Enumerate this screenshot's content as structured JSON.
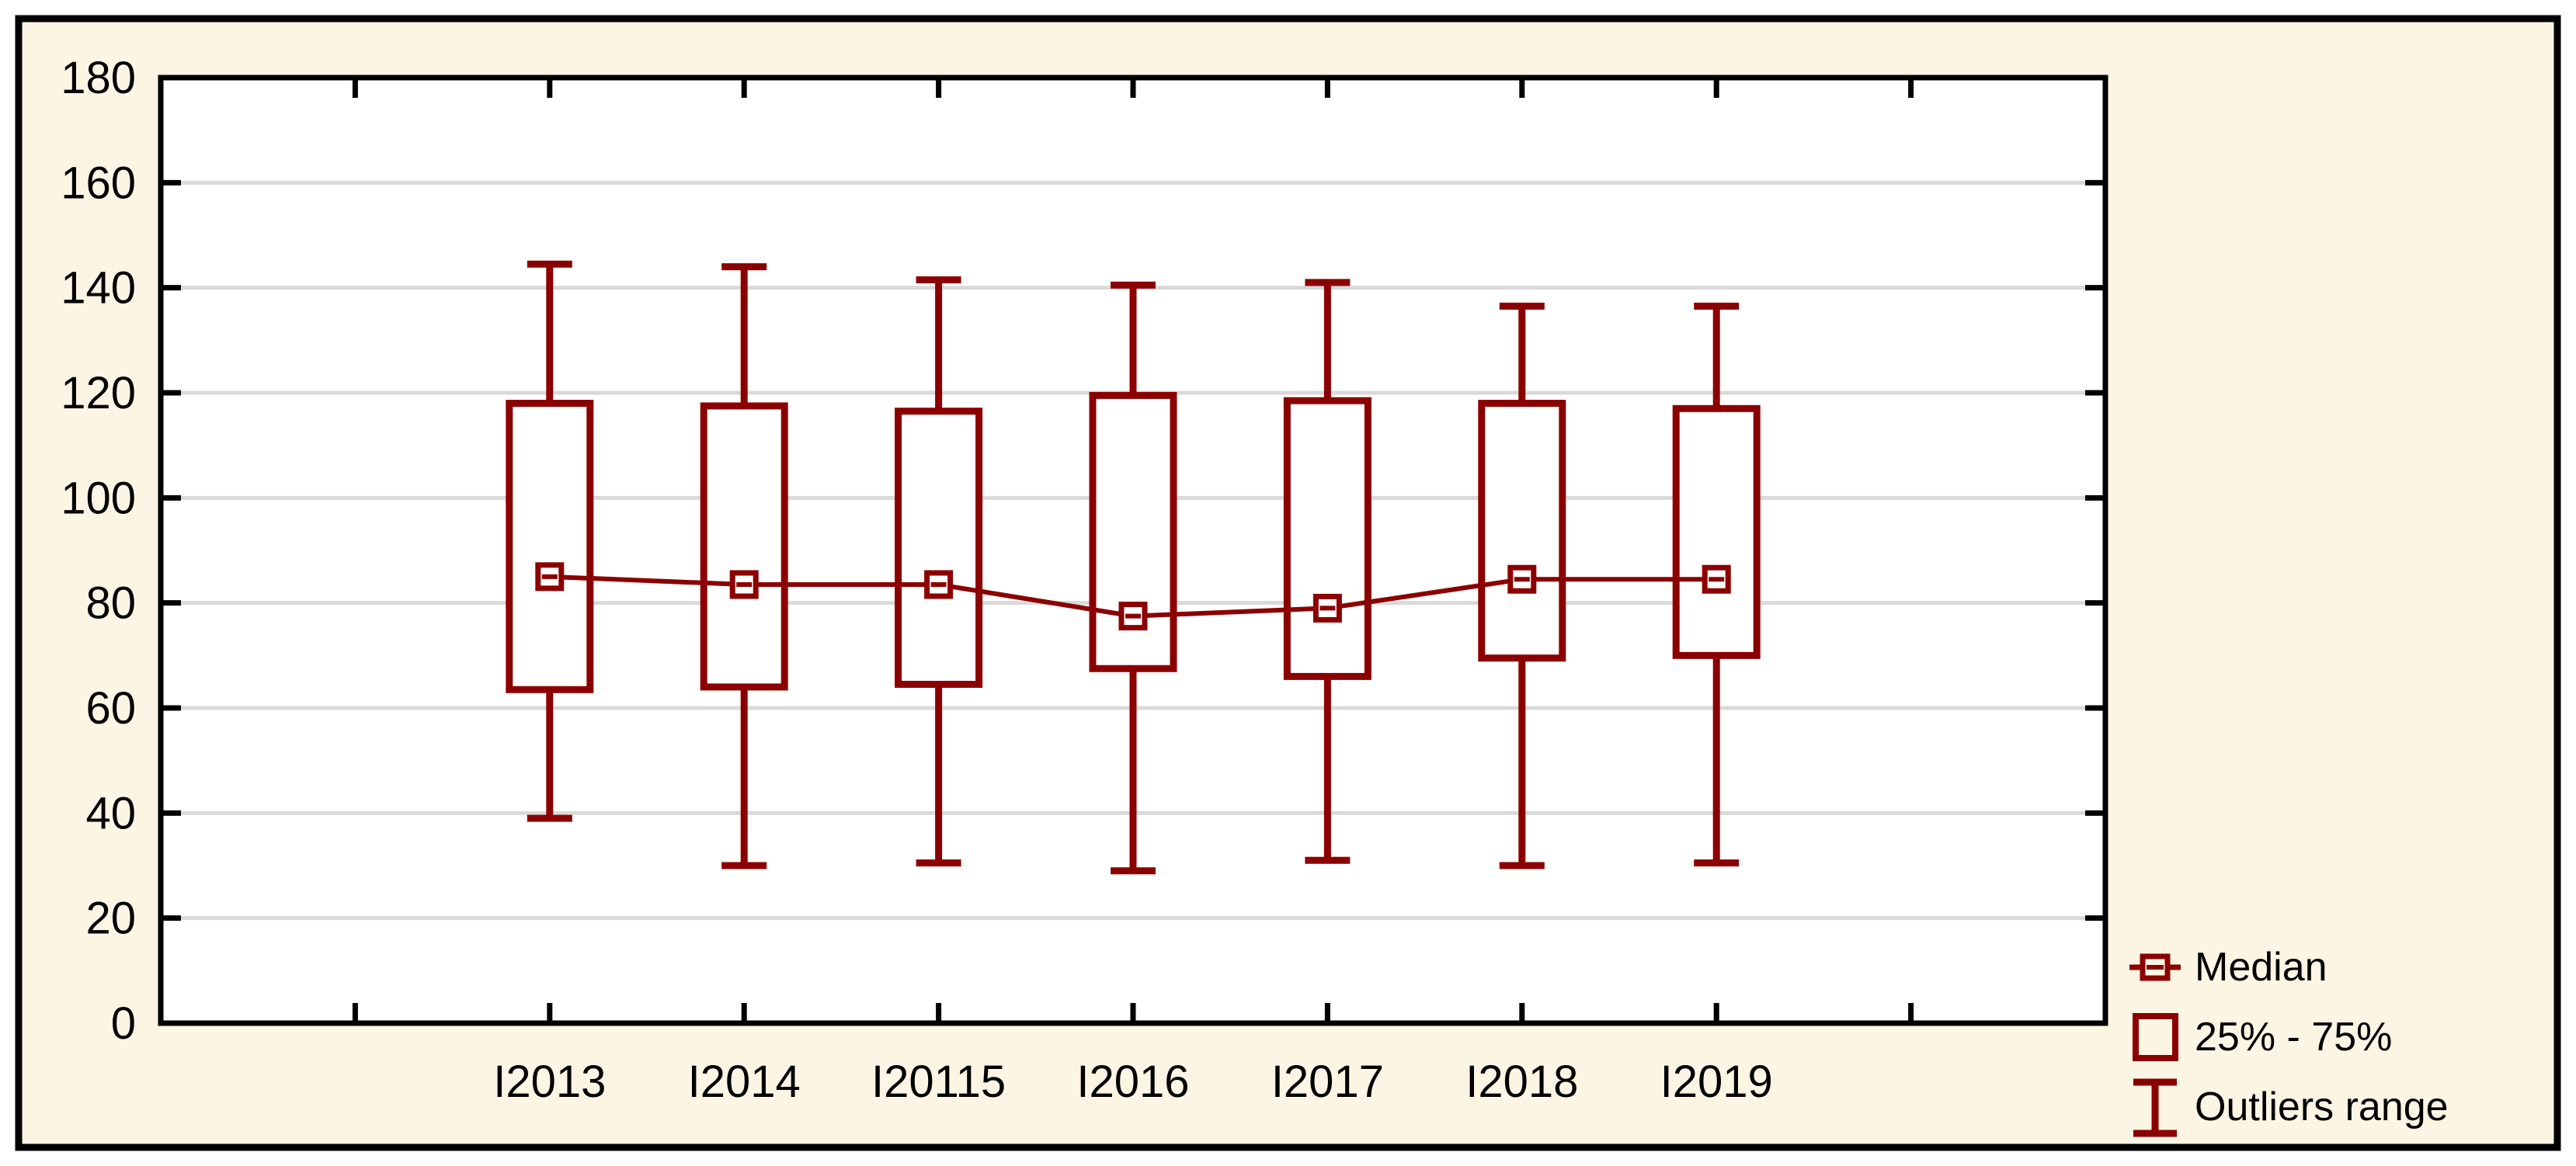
{
  "chart_data": {
    "type": "box",
    "title": "",
    "categories": [
      "I2013",
      "I2014",
      "I20115",
      "I2016",
      "I2017",
      "I2018",
      "I2019"
    ],
    "series": [
      {
        "name": "Median",
        "values": [
          85,
          83.5,
          83.5,
          77.5,
          79,
          84.5,
          84.5
        ]
      },
      {
        "name": "25%",
        "values": [
          63.5,
          64,
          64.5,
          67.5,
          66,
          69.5,
          70
        ]
      },
      {
        "name": "75%",
        "values": [
          118,
          117.5,
          116.5,
          119.5,
          118.5,
          118,
          117
        ]
      },
      {
        "name": "Outlier low",
        "values": [
          39,
          30,
          30.5,
          29,
          31,
          30,
          30.5
        ]
      },
      {
        "name": "Outlier high",
        "values": [
          144.5,
          144,
          141.5,
          140.5,
          141,
          136.5,
          136.5
        ]
      }
    ],
    "y_axis": {
      "min": 0,
      "max": 180,
      "tick_step": 20
    },
    "x_axis": {
      "empty_edge_slots": 1
    },
    "grid": "horizontal",
    "legend": {
      "position": "bottom-right",
      "items": [
        {
          "label": "Median",
          "symbol": "median-marker"
        },
        {
          "label": "25% - 75%",
          "symbol": "box"
        },
        {
          "label": "Outliers range",
          "symbol": "whisker"
        }
      ]
    },
    "colors": {
      "series_color": "#8B0101",
      "grid_color": "#D9D9D9",
      "frame_color": "#000000",
      "text_color": "#000000",
      "canvas_background": "#FCF5E4",
      "plot_background": "#FFFFFF"
    }
  }
}
